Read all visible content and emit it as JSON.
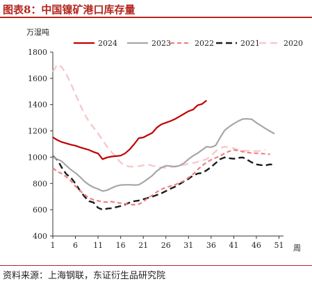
{
  "header": {
    "title": "图表8：中国镍矿港口库存量"
  },
  "footer": {
    "source": "资料来源：上海钢联，东证衍生品研究院"
  },
  "colors": {
    "accent": "#b3261e"
  },
  "chart_data": {
    "type": "line",
    "ylabel": "万湿吨",
    "xlabel": "周",
    "ylim": [
      400,
      1800
    ],
    "xlim": [
      1,
      52
    ],
    "yticks": [
      400,
      600,
      800,
      1000,
      1200,
      1400,
      1600,
      1800
    ],
    "xticks": [
      1,
      6,
      11,
      16,
      21,
      26,
      31,
      36,
      41,
      46,
      51
    ],
    "grid": false,
    "legend": "top",
    "series": [
      {
        "name": "2024",
        "color": "#c00000",
        "dash": "solid",
        "width": 2.2,
        "values": [
          1152,
          1130,
          1115,
          1105,
          1095,
          1088,
          1075,
          1065,
          1055,
          1040,
          1028,
          985,
          998,
          1005,
          1008,
          1012,
          1030,
          1060,
          1100,
          1145,
          1150,
          1168,
          1185,
          1225,
          1250,
          1262,
          1275,
          1290,
          1310,
          1330,
          1350,
          1362,
          1395,
          1405,
          1432
        ]
      },
      {
        "name": "2023",
        "color": "#a6a6a6",
        "dash": "solid",
        "width": 2.2,
        "values": [
          1002,
          985,
          968,
          935,
          905,
          880,
          850,
          815,
          790,
          770,
          758,
          742,
          748,
          765,
          780,
          788,
          790,
          790,
          788,
          790,
          810,
          835,
          860,
          895,
          920,
          935,
          932,
          928,
          935,
          955,
          985,
          1010,
          1030,
          1055,
          1080,
          1075,
          1090,
          1150,
          1205,
          1232,
          1255,
          1275,
          1290,
          1292,
          1288,
          1262,
          1240,
          1218,
          1198,
          1178
        ]
      },
      {
        "name": "2022",
        "color": "#f08080",
        "dash": "6,4",
        "width": 2.2,
        "values": [
          918,
          890,
          875,
          850,
          820,
          780,
          745,
          715,
          690,
          675,
          668,
          660,
          658,
          662,
          655,
          650,
          645,
          640,
          638,
          642,
          660,
          690,
          710,
          735,
          755,
          770,
          780,
          790,
          805,
          820,
          845,
          870,
          905,
          935,
          960,
          980,
          995,
          1010,
          1030,
          1045,
          1055,
          1050,
          1042,
          1035,
          1032,
          1030,
          1028,
          1025,
          1022
        ]
      },
      {
        "name": "2021",
        "color": "#1a1a1a",
        "dash": "9,5",
        "width": 2.4,
        "values": [
          1008,
          980,
          920,
          870,
          845,
          800,
          745,
          700,
          665,
          655,
          615,
          600,
          608,
          612,
          620,
          628,
          640,
          655,
          665,
          670,
          680,
          690,
          700,
          712,
          725,
          742,
          760,
          775,
          795,
          815,
          835,
          860,
          875,
          880,
          900,
          925,
          955,
          985,
          998,
          992,
          988,
          995,
          998,
          980,
          960,
          945,
          940,
          938,
          945,
          942
        ]
      },
      {
        "name": "2020",
        "color": "#f8c8cc",
        "dash": "10,6",
        "width": 2.4,
        "values": [
          1650,
          1705,
          1685,
          1630,
          1560,
          1480,
          1400,
          1330,
          1270,
          1225,
          1180,
          1130,
          1080,
          1040,
          1000,
          960,
          935,
          928,
          930,
          932,
          938,
          945,
          935,
          928,
          922,
          920,
          925,
          930,
          935,
          942,
          950,
          955,
          965,
          975,
          985,
          1010,
          1045,
          1070,
          1080,
          1075,
          1068,
          1055,
          1050,
          1048,
          1048,
          1046,
          1048,
          1055
        ]
      }
    ]
  }
}
